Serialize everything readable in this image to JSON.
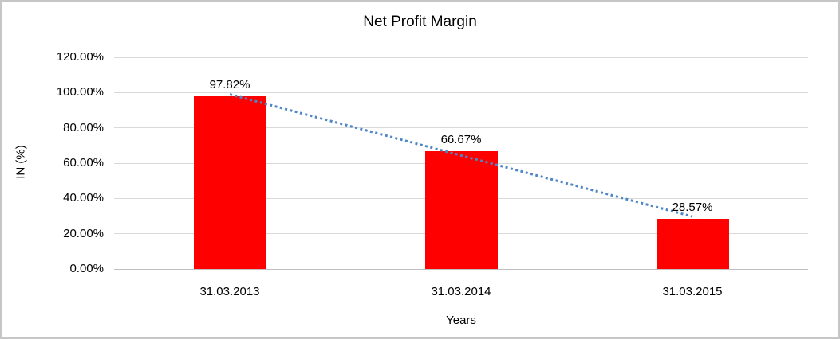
{
  "chart_data": {
    "type": "bar",
    "title": "Net Profit Margin",
    "xlabel": "Years",
    "ylabel": "IN (%)",
    "categories": [
      "31.03.2013",
      "31.03.2014",
      "31.03.2015"
    ],
    "values": [
      97.82,
      66.67,
      28.57
    ],
    "data_labels": [
      "97.82%",
      "66.67%",
      "28.57%"
    ],
    "ylim": [
      0,
      120
    ],
    "ytick_step": 20,
    "ytick_labels": [
      "0.00%",
      "20.00%",
      "40.00%",
      "60.00%",
      "80.00%",
      "100.00%",
      "120.00%"
    ],
    "grid": true,
    "legend": false,
    "trendline": {
      "type": "linear",
      "style": "dotted"
    },
    "colors": {
      "bar": "#ff0000",
      "trendline": "#4f86c6",
      "gridline": "#d9d9d9",
      "axis_line": "#c0c0c0",
      "text": "#000000",
      "background": "#ffffff",
      "frame_border": "#c6c6c6"
    }
  }
}
